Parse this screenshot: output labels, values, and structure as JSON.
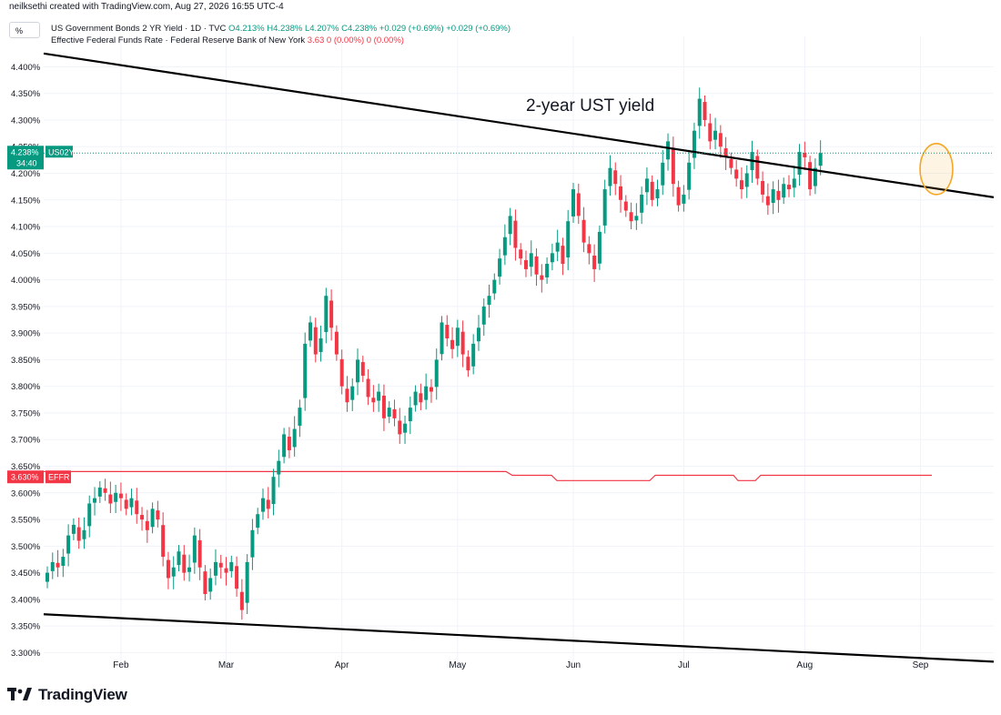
{
  "header": {
    "credit": "neilksethi created with TradingView.com, Aug 27, 2026 16:55 UTC-4",
    "scale_button": "%",
    "series1": {
      "title": "US Government Bonds 2 YR Yield · 1D · TVC",
      "ohlc": "O4.213% H4.238% L4.207% C4.238% +0.029 (+0.69%) +0.029 (+0.69%)"
    },
    "series2": {
      "title": "Effective Federal Funds Rate · Federal Reserve Bank of New York",
      "values": "3.63 0 (0.00%) 0 (0.00%)"
    }
  },
  "brand": {
    "name": "TradingView",
    "logo_icon": "tradingview-logo-icon"
  },
  "colors": {
    "up": "#089981",
    "down": "#f23645",
    "effr": "#f23645",
    "trend": "#000000",
    "highlight": "#f5a623"
  },
  "chart_data": {
    "type": "candlestick",
    "annotation": "2-year UST yield",
    "ylim": [
      3.27,
      4.44
    ],
    "y_ticks": [
      "3.300%",
      "3.350%",
      "3.400%",
      "3.450%",
      "3.500%",
      "3.550%",
      "3.600%",
      "3.650%",
      "3.700%",
      "3.750%",
      "3.800%",
      "3.850%",
      "3.900%",
      "3.950%",
      "4.000%",
      "4.050%",
      "4.100%",
      "4.150%",
      "4.200%",
      "4.250%",
      "4.300%",
      "4.350%",
      "4.400%"
    ],
    "y_tick_values": [
      3.3,
      3.35,
      3.4,
      3.45,
      3.5,
      3.55,
      3.6,
      3.65,
      3.7,
      3.75,
      3.8,
      3.85,
      3.9,
      3.95,
      4.0,
      4.05,
      4.1,
      4.15,
      4.2,
      4.25,
      4.3,
      4.35,
      4.4
    ],
    "x_ticks": [
      {
        "label": "Feb",
        "date": "2026-02-01"
      },
      {
        "label": "Mar",
        "date": "2026-03-01"
      },
      {
        "label": "Apr",
        "date": "2026-04-01"
      },
      {
        "label": "May",
        "date": "2026-05-01"
      },
      {
        "label": "Jun",
        "date": "2026-06-01"
      },
      {
        "label": "Jul",
        "date": "2026-07-01"
      },
      {
        "label": "Aug",
        "date": "2026-08-01"
      },
      {
        "label": "Sep",
        "date": "2026-09-01"
      }
    ],
    "last_price_label": {
      "value": "4.238%",
      "ticker": "US02Y",
      "countdown": "34:40",
      "y": 4.238
    },
    "effr_label": {
      "value": "3.630%",
      "ticker": "EFFR",
      "y": 3.63
    },
    "closes": [
      3.45,
      3.47,
      3.46,
      3.48,
      3.52,
      3.54,
      3.51,
      3.53,
      3.58,
      3.59,
      3.61,
      3.6,
      3.58,
      3.6,
      3.59,
      3.57,
      3.59,
      3.56,
      3.55,
      3.53,
      3.57,
      3.55,
      3.48,
      3.44,
      3.46,
      3.49,
      3.45,
      3.46,
      3.52,
      3.46,
      3.41,
      3.44,
      3.47,
      3.46,
      3.45,
      3.47,
      3.42,
      3.38,
      3.47,
      3.53,
      3.56,
      3.59,
      3.57,
      3.63,
      3.66,
      3.71,
      3.68,
      3.72,
      3.76,
      3.88,
      3.92,
      3.86,
      3.89,
      3.97,
      3.91,
      3.86,
      3.8,
      3.77,
      3.8,
      3.85,
      3.82,
      3.78,
      3.77,
      3.79,
      3.74,
      3.76,
      3.74,
      3.71,
      3.73,
      3.76,
      3.79,
      3.77,
      3.8,
      3.79,
      3.85,
      3.92,
      3.89,
      3.87,
      3.91,
      3.86,
      3.83,
      3.88,
      3.91,
      3.95,
      3.97,
      4.0,
      4.04,
      4.08,
      4.12,
      4.06,
      4.04,
      4.02,
      4.05,
      4.01,
      4.0,
      4.03,
      4.05,
      4.07,
      4.03,
      4.11,
      4.17,
      4.12,
      4.07,
      4.05,
      4.02,
      4.09,
      4.17,
      4.21,
      4.18,
      4.15,
      4.13,
      4.11,
      4.12,
      4.16,
      4.19,
      4.15,
      4.17,
      4.22,
      4.26,
      4.18,
      4.14,
      4.16,
      4.22,
      4.28,
      4.34,
      4.3,
      4.26,
      4.28,
      4.25,
      4.23,
      4.21,
      4.19,
      4.17,
      4.2,
      4.24,
      4.19,
      4.16,
      4.14,
      4.17,
      4.15,
      4.18,
      4.17,
      4.19,
      4.24,
      4.23,
      4.17,
      4.21,
      4.238
    ]
  }
}
